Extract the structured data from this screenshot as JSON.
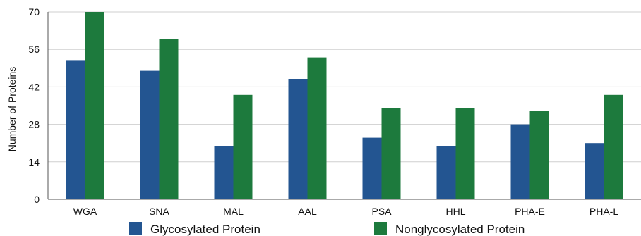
{
  "chart_data": {
    "type": "bar",
    "title": "",
    "xlabel": "",
    "ylabel": "Number of Proteins",
    "ylim": [
      0,
      70
    ],
    "yticks": [
      0,
      14,
      28,
      42,
      56,
      70
    ],
    "grid": true,
    "legend_position": "bottom",
    "categories": [
      "WGA",
      "SNA",
      "MAL",
      "AAL",
      "PSA",
      "HHL",
      "PHA-E",
      "PHA-L"
    ],
    "series": [
      {
        "name": "Glycosylated Protein",
        "color": "#235591",
        "values": [
          52,
          48,
          20,
          45,
          23,
          20,
          28,
          21
        ]
      },
      {
        "name": "Nonglycosylated Protein",
        "color": "#1d7a3d",
        "values": [
          70,
          60,
          39,
          53,
          34,
          34,
          33,
          39
        ]
      }
    ]
  }
}
